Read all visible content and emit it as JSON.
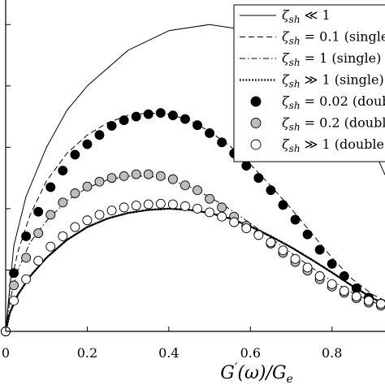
{
  "chart_data": {
    "type": "scatter",
    "xlabel": "G′(ω)/G_e",
    "ylabel": "",
    "xlim": [
      0,
      0.93
    ],
    "ylim": [
      0,
      0.54
    ],
    "x_ticks": [
      0,
      0.2,
      0.4,
      0.6,
      0.8
    ],
    "x_tick_labels": [
      "0",
      "0.2",
      "0.4",
      "0.6",
      "0.8"
    ],
    "y_ticks": [
      0.1,
      0.2,
      0.3,
      0.4,
      0.5
    ],
    "legend_position": "top-right",
    "series": [
      {
        "name": "ζ_sh ≪ 1",
        "style": "solid",
        "x": [
          0,
          0.02,
          0.05,
          0.1,
          0.15,
          0.2,
          0.3,
          0.4,
          0.5,
          0.6,
          0.7,
          0.8,
          0.85,
          0.9,
          0.93
        ],
        "y": [
          0,
          0.14,
          0.22,
          0.3,
          0.36,
          0.4,
          0.458,
          0.49,
          0.5,
          0.49,
          0.458,
          0.4,
          0.357,
          0.3,
          0.255
        ]
      },
      {
        "name": "ζ_sh = 0.1 (single)",
        "style": "dashed",
        "x": [
          0,
          0.01,
          0.03,
          0.06,
          0.1,
          0.15,
          0.2,
          0.25,
          0.3,
          0.35,
          0.4,
          0.45,
          0.5,
          0.55,
          0.6,
          0.65,
          0.7,
          0.75,
          0.8,
          0.85,
          0.9,
          0.93
        ],
        "y": [
          0,
          0.07,
          0.13,
          0.19,
          0.245,
          0.29,
          0.32,
          0.34,
          0.352,
          0.356,
          0.354,
          0.344,
          0.326,
          0.302,
          0.272,
          0.237,
          0.2,
          0.16,
          0.12,
          0.085,
          0.06,
          0.05
        ]
      },
      {
        "name": "ζ_sh = 1 (single)",
        "style": "dashdot",
        "x": [
          0,
          0.01,
          0.03,
          0.06,
          0.1,
          0.15,
          0.2,
          0.25,
          0.3,
          0.35,
          0.4,
          0.45,
          0.5,
          0.55,
          0.6,
          0.65,
          0.7,
          0.75,
          0.8,
          0.85,
          0.9,
          0.93
        ],
        "y": [
          0,
          0.05,
          0.1,
          0.145,
          0.18,
          0.213,
          0.234,
          0.247,
          0.253,
          0.253,
          0.248,
          0.236,
          0.219,
          0.199,
          0.176,
          0.152,
          0.128,
          0.104,
          0.082,
          0.063,
          0.048,
          0.041
        ]
      },
      {
        "name": "ζ_sh ≫ 1 (single)",
        "style": "dotted",
        "x": [
          0,
          0.01,
          0.03,
          0.06,
          0.1,
          0.15,
          0.2,
          0.25,
          0.3,
          0.35,
          0.4,
          0.45,
          0.5,
          0.55,
          0.6,
          0.65,
          0.7,
          0.75,
          0.8,
          0.85,
          0.9,
          0.93
        ],
        "y": [
          0,
          0.03,
          0.06,
          0.09,
          0.12,
          0.149,
          0.17,
          0.184,
          0.193,
          0.198,
          0.2,
          0.198,
          0.193,
          0.184,
          0.171,
          0.155,
          0.137,
          0.117,
          0.096,
          0.074,
          0.054,
          0.044
        ]
      },
      {
        "name": "ζ_sh = 0.02 (double)",
        "style": "marker-filled-black",
        "x": [
          0,
          0.02,
          0.05,
          0.08,
          0.11,
          0.14,
          0.17,
          0.2,
          0.23,
          0.26,
          0.29,
          0.32,
          0.35,
          0.38,
          0.41,
          0.44,
          0.47,
          0.5,
          0.53,
          0.56,
          0.59,
          0.62,
          0.65,
          0.68,
          0.71,
          0.74,
          0.77,
          0.8,
          0.83,
          0.86,
          0.89,
          0.92
        ],
        "y": [
          0,
          0.095,
          0.155,
          0.195,
          0.235,
          0.262,
          0.288,
          0.305,
          0.32,
          0.335,
          0.344,
          0.35,
          0.354,
          0.356,
          0.352,
          0.346,
          0.336,
          0.323,
          0.308,
          0.29,
          0.27,
          0.25,
          0.23,
          0.206,
          0.182,
          0.158,
          0.133,
          0.11,
          0.09,
          0.07,
          0.055,
          0.045
        ]
      },
      {
        "name": "ζ_sh = 0.2 (double)",
        "style": "marker-filled-gray",
        "x": [
          0,
          0.02,
          0.05,
          0.08,
          0.11,
          0.14,
          0.17,
          0.2,
          0.23,
          0.26,
          0.29,
          0.32,
          0.35,
          0.38,
          0.41,
          0.44,
          0.47,
          0.5,
          0.53,
          0.56,
          0.59,
          0.62,
          0.65,
          0.68,
          0.71,
          0.74,
          0.77,
          0.8,
          0.83,
          0.86,
          0.89,
          0.92
        ],
        "y": [
          0,
          0.075,
          0.12,
          0.16,
          0.19,
          0.21,
          0.225,
          0.236,
          0.244,
          0.25,
          0.253,
          0.256,
          0.256,
          0.253,
          0.248,
          0.238,
          0.23,
          0.216,
          0.202,
          0.187,
          0.172,
          0.158,
          0.143,
          0.128,
          0.113,
          0.099,
          0.085,
          0.073,
          0.063,
          0.054,
          0.047,
          0.042
        ]
      },
      {
        "name": "ζ_sh ≫ 1 (double)",
        "style": "marker-open",
        "x": [
          0,
          0.02,
          0.05,
          0.08,
          0.11,
          0.14,
          0.17,
          0.2,
          0.23,
          0.26,
          0.29,
          0.32,
          0.35,
          0.38,
          0.41,
          0.44,
          0.47,
          0.5,
          0.53,
          0.56,
          0.59,
          0.62,
          0.65,
          0.68,
          0.71,
          0.74,
          0.77,
          0.8,
          0.83,
          0.86,
          0.89,
          0.92
        ],
        "y": [
          0,
          0.05,
          0.085,
          0.115,
          0.138,
          0.155,
          0.17,
          0.181,
          0.19,
          0.197,
          0.202,
          0.205,
          0.207,
          0.208,
          0.207,
          0.204,
          0.2,
          0.194,
          0.187,
          0.178,
          0.168,
          0.157,
          0.145,
          0.132,
          0.118,
          0.104,
          0.09,
          0.077,
          0.066,
          0.057,
          0.05,
          0.045
        ]
      }
    ]
  },
  "legend": {
    "items": [
      {
        "symbol": "ζ",
        "sub": "sh",
        "rest": " ≪ 1",
        "style": "solid"
      },
      {
        "symbol": "ζ",
        "sub": "sh",
        "rest": " = 0.1 (single)",
        "style": "dashed"
      },
      {
        "symbol": "ζ",
        "sub": "sh",
        "rest": " = 1 (single)",
        "style": "dashdot"
      },
      {
        "symbol": "ζ",
        "sub": "sh",
        "rest": " ≫ 1 (single)",
        "style": "dotted"
      },
      {
        "symbol": "ζ",
        "sub": "sh",
        "rest": " = 0.02 (double)",
        "style": "marker-filled-black"
      },
      {
        "symbol": "ζ",
        "sub": "sh",
        "rest": " = 0.2 (double)",
        "style": "marker-filled-gray"
      },
      {
        "symbol": "ζ",
        "sub": "sh",
        "rest": " ≫ 1 (double)",
        "style": "marker-open"
      }
    ]
  },
  "colors": {
    "axis": "#000000",
    "gray_marker": "#bdbdbd",
    "black_marker": "#000000",
    "open_marker_fill": "#ffffff"
  },
  "xlabel_parts": {
    "g": "G",
    "prime": "′",
    "omega": "(ω)/",
    "ge": "G",
    "e": "e"
  }
}
